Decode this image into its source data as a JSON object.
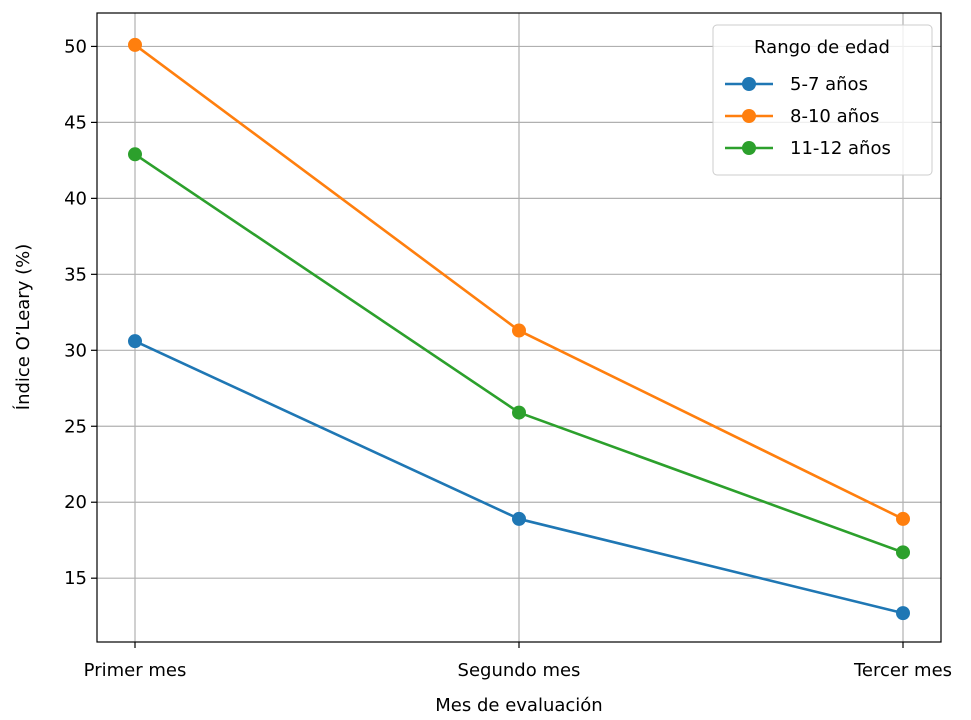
{
  "chart_data": {
    "type": "line",
    "title": "",
    "xlabel": "Mes de evaluación",
    "ylabel": "Índice O’Leary (%)",
    "categories": [
      "Primer mes",
      "Segundo mes",
      "Tercer mes"
    ],
    "ylim": [
      10.8,
      52.2
    ],
    "yticks": [
      15,
      20,
      25,
      30,
      35,
      40,
      45,
      50
    ],
    "grid": true,
    "legend": {
      "title": "Rango de edad",
      "placement": "top-right"
    },
    "series": [
      {
        "name": "5-7 años",
        "color": "#1f77b4",
        "values": [
          30.6,
          18.9,
          12.7
        ]
      },
      {
        "name": "8-10 años",
        "color": "#ff7f0e",
        "values": [
          50.1,
          31.3,
          18.9
        ]
      },
      {
        "name": "11-12 años",
        "color": "#2ca02c",
        "values": [
          42.9,
          25.9,
          16.7
        ]
      }
    ]
  }
}
